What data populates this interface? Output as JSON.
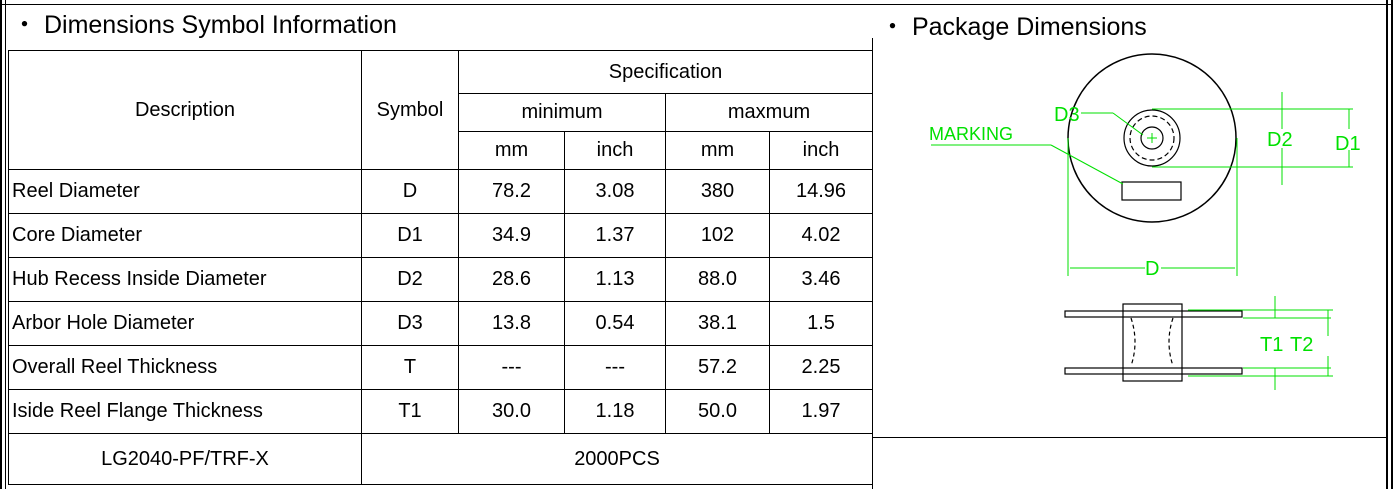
{
  "left_section": {
    "bullet": "・",
    "title": "Dimensions Symbol Information"
  },
  "right_section": {
    "bullet": "・",
    "title": "Package Dimensions"
  },
  "table": {
    "header": {
      "description": "Description",
      "symbol": "Symbol",
      "specification": "Specification",
      "minimum": "minimum",
      "maximum": "maxmum",
      "mm": "mm",
      "inch": "inch"
    },
    "rows": [
      {
        "description": "Reel Diameter",
        "symbol": "D",
        "min_mm": "78.2",
        "min_inch": "3.08",
        "max_mm": "380",
        "max_inch": "14.96"
      },
      {
        "description": "Core Diameter",
        "symbol": "D1",
        "min_mm": "34.9",
        "min_inch": "1.37",
        "max_mm": "102",
        "max_inch": "4.02"
      },
      {
        "description": "Hub Recess Inside Diameter",
        "symbol": "D2",
        "min_mm": "28.6",
        "min_inch": "1.13",
        "max_mm": "88.0",
        "max_inch": "3.46"
      },
      {
        "description": "Arbor Hole Diameter",
        "symbol": "D3",
        "min_mm": "13.8",
        "min_inch": "0.54",
        "max_mm": "38.1",
        "max_inch": "1.5"
      },
      {
        "description": "Overall Reel Thickness",
        "symbol": "T",
        "min_mm": "---",
        "min_inch": "---",
        "max_mm": "57.2",
        "max_inch": "2.25"
      },
      {
        "description": "Iside Reel Flange Thickness",
        "symbol": "T1",
        "min_mm": "30.0",
        "min_inch": "1.18",
        "max_mm": "50.0",
        "max_inch": "1.97"
      }
    ],
    "footer": {
      "part": "LG2040-PF/TRF-X",
      "quantity": "2000PCS"
    }
  },
  "diagram": {
    "labels": {
      "d": "D",
      "d1": "D1",
      "d2": "D2",
      "d3": "D3",
      "marking": "MARKING",
      "t1": "T1",
      "t2": "T2"
    },
    "dimension_color": "#00e000"
  }
}
